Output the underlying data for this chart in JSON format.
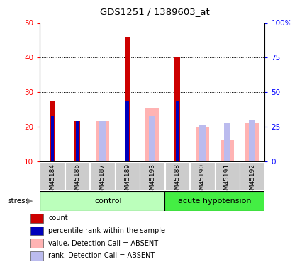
{
  "title": "GDS1251 / 1389603_at",
  "samples": [
    "GSM45184",
    "GSM45186",
    "GSM45187",
    "GSM45189",
    "GSM45193",
    "GSM45188",
    "GSM45190",
    "GSM45191",
    "GSM45192"
  ],
  "count_values": [
    27.5,
    21.5,
    0,
    46,
    0,
    40,
    0,
    0,
    0
  ],
  "rank_values": [
    23,
    21.5,
    0,
    27.5,
    0,
    27.5,
    0,
    0,
    0
  ],
  "absent_value_values": [
    0,
    0,
    21.5,
    0,
    25.5,
    0,
    20,
    16,
    21
  ],
  "absent_rank_values": [
    0,
    0,
    21.5,
    0,
    23,
    0,
    20.5,
    21,
    22
  ],
  "ylim_left": [
    10,
    50
  ],
  "ylim_right": [
    0,
    100
  ],
  "yticks_left": [
    10,
    20,
    30,
    40,
    50
  ],
  "yticks_right": [
    0,
    25,
    50,
    75,
    100
  ],
  "ytick_labels_right": [
    "0",
    "25",
    "50",
    "75",
    "100%"
  ],
  "color_count": "#cc0000",
  "color_rank": "#0000bb",
  "color_absent_value": "#ffb3b3",
  "color_absent_rank": "#bbbbee",
  "group_control_color": "#bbffbb",
  "group_hypotension_color": "#44ee44",
  "sample_bg_color": "#cccccc",
  "stress_label": "stress",
  "group_labels": [
    "control",
    "acute hypotension"
  ],
  "control_count": 5,
  "legend_items": [
    {
      "color": "#cc0000",
      "label": "count"
    },
    {
      "color": "#0000bb",
      "label": "percentile rank within the sample"
    },
    {
      "color": "#ffb3b3",
      "label": "value, Detection Call = ABSENT"
    },
    {
      "color": "#bbbbee",
      "label": "rank, Detection Call = ABSENT"
    }
  ]
}
